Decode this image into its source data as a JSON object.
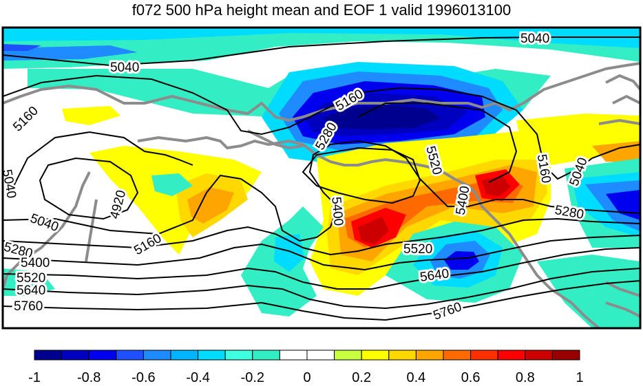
{
  "title": "f072 500 hPa height mean and EOF 1 valid 1996013100",
  "contour_labels": [
    {
      "text": "5040"
    },
    {
      "text": "5040"
    },
    {
      "text": "5160"
    },
    {
      "text": "5160"
    },
    {
      "text": "5280"
    },
    {
      "text": "5520"
    },
    {
      "text": "5160"
    },
    {
      "text": "5040"
    },
    {
      "text": "5040"
    },
    {
      "text": "4920"
    },
    {
      "text": "5040"
    },
    {
      "text": "5160"
    },
    {
      "text": "5400"
    },
    {
      "text": "5400"
    },
    {
      "text": "5280"
    },
    {
      "text": "5520"
    },
    {
      "text": "5280"
    },
    {
      "text": "5400"
    },
    {
      "text": "5520"
    },
    {
      "text": "5640"
    },
    {
      "text": "5760"
    },
    {
      "text": "5640"
    },
    {
      "text": "5760"
    }
  ],
  "colorbar": {
    "colors": [
      "#00008f",
      "#0000bf",
      "#0000ef",
      "#1e50ff",
      "#1e8cff",
      "#00b4ff",
      "#00dcff",
      "#40ffe0",
      "#33eec4",
      "#ffffff",
      "#ffffff",
      "#c8ff40",
      "#ffff00",
      "#ffd800",
      "#ffa500",
      "#ff6a00",
      "#ff3000",
      "#ff0000",
      "#cc0000",
      "#990000"
    ],
    "labels": [
      "-1",
      "-0.8",
      "-0.6",
      "-0.4",
      "-0.2",
      "0",
      "0.2",
      "0.4",
      "0.6",
      "0.8",
      "1"
    ]
  }
}
